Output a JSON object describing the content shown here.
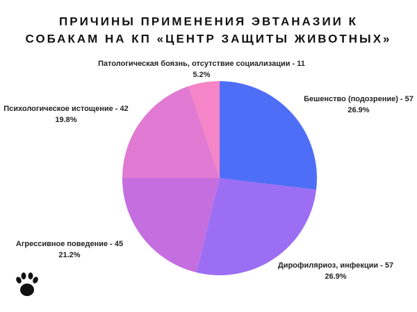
{
  "chart_data": {
    "type": "pie",
    "title": [
      "ПРИЧИНЫ ПРИМЕНЕНИЯ ЭВТАНАЗИИ К",
      "СОБАКАМ НА КП «ЦЕНТР ЗАЩИТЫ ЖИВОТНЫХ»"
    ],
    "categories": [
      "Бешенство (подозрение) - 57",
      "Дирофиляриоз, инфекции - 57",
      "Агрессивное поведение - 45",
      "Психологическое истощение - 42",
      "Патологическая боязнь, отсутствие социализации - 11"
    ],
    "values": [
      26.9,
      26.9,
      21.2,
      19.8,
      5.2
    ],
    "value_labels": [
      "26.9%",
      "26.9%",
      "21.2%",
      "19.8%",
      "5.2%"
    ],
    "colors": [
      "#4f6ef7",
      "#9b6ef3",
      "#c46ee0",
      "#e07ad2",
      "#f585c6"
    ]
  }
}
